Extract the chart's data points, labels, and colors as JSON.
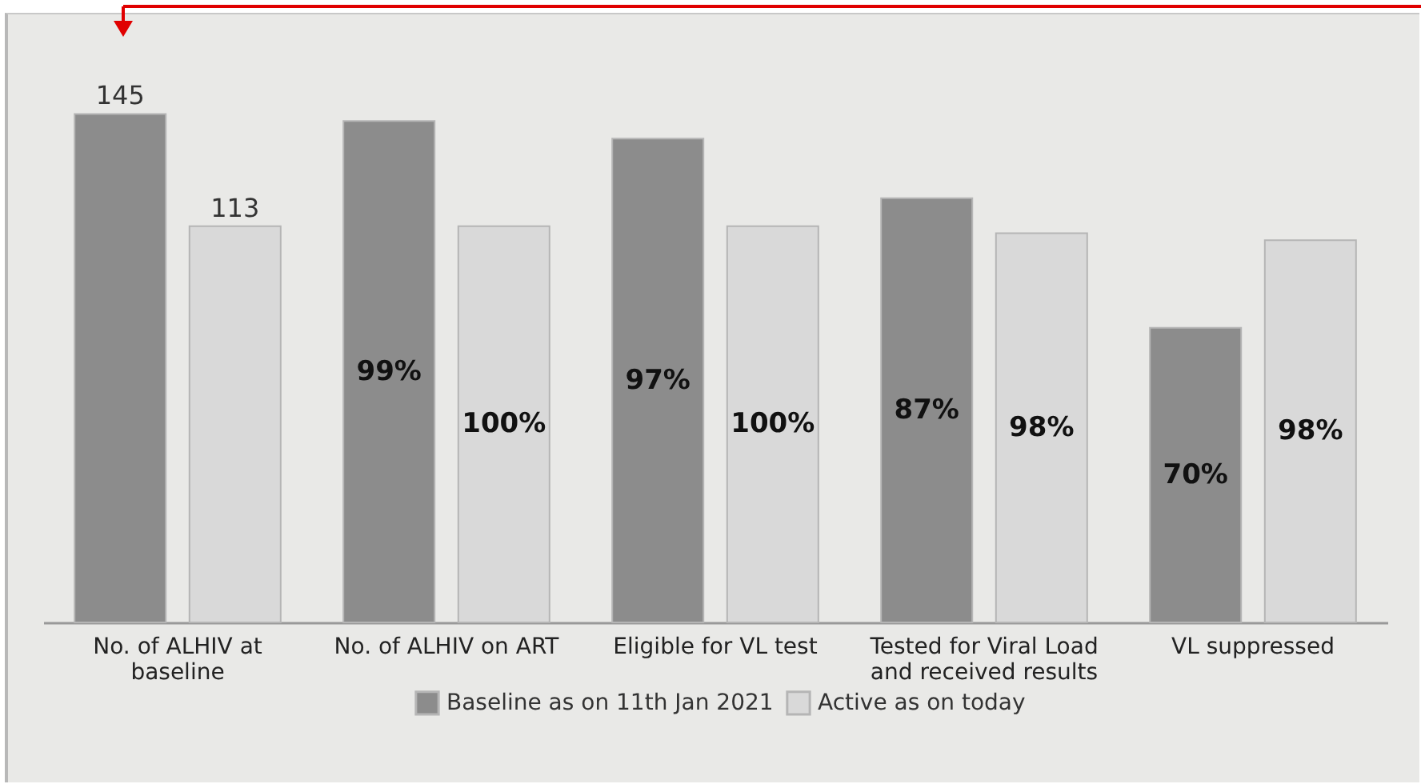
{
  "chart_data": {
    "type": "bar",
    "categories": [
      "No. of ALHIV at baseline",
      "No. of ALHIV on ART",
      "Eligible for VL test",
      "Tested for Viral Load and received results",
      "VL suppressed"
    ],
    "series": [
      {
        "name": "Baseline as on 11th Jan 2021",
        "color": "#8c8c8c",
        "values": [
          145,
          143,
          138,
          121,
          84
        ],
        "value_labels": [
          "145",
          null,
          null,
          null,
          null
        ]
      },
      {
        "name": "Active as on today",
        "color": "#d9d9d9",
        "values": [
          113,
          113,
          113,
          111,
          109
        ],
        "value_labels": [
          "113",
          null,
          null,
          null,
          null
        ]
      }
    ],
    "annotations": [
      "99%",
      "100%",
      "97%",
      "100%",
      "87%",
      "98%",
      "70%",
      "98%"
    ],
    "legend": "bottom",
    "grid": false
  }
}
